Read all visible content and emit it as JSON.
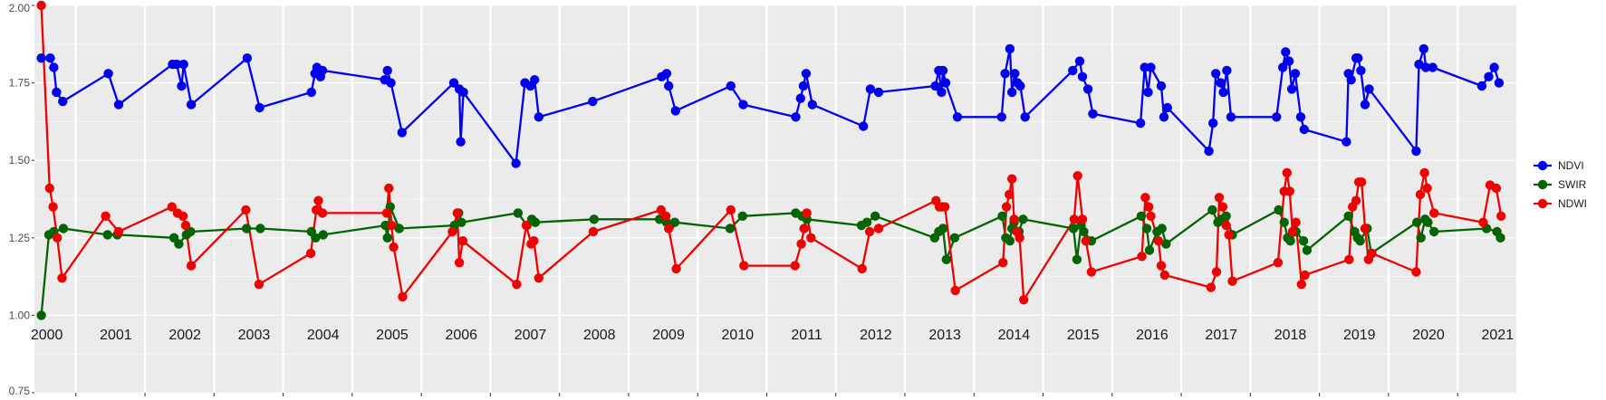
{
  "chart_data": {
    "type": "line",
    "title": "",
    "xlabel": "",
    "ylabel": "",
    "ylim": [
      0.75,
      2.0
    ],
    "xlim": [
      1999.9,
      2021.35
    ],
    "grid": true,
    "legend": "right",
    "y_ticks": [
      "0.75",
      "1.00",
      "1.25",
      "1.50",
      "1.75",
      "2.00"
    ],
    "x_ticks": [
      "2000",
      "2001",
      "2002",
      "2003",
      "2004",
      "2005",
      "2006",
      "2007",
      "2008",
      "2009",
      "2010",
      "2011",
      "2012",
      "2013",
      "2014",
      "2015",
      "2016",
      "2017",
      "2018",
      "2019",
      "2020",
      "2021"
    ],
    "series": [
      {
        "name": "NDVI",
        "color": "#0000ee",
        "points": [
          [
            2000.0,
            1.83
          ],
          [
            2000.13,
            1.83
          ],
          [
            2000.18,
            1.8
          ],
          [
            2000.22,
            1.72
          ],
          [
            2000.31,
            1.69
          ],
          [
            2000.97,
            1.78
          ],
          [
            2001.12,
            1.68
          ],
          [
            2001.9,
            1.81
          ],
          [
            2001.96,
            1.81
          ],
          [
            2002.03,
            1.74
          ],
          [
            2002.06,
            1.81
          ],
          [
            2002.17,
            1.68
          ],
          [
            2002.98,
            1.83
          ],
          [
            2003.16,
            1.67
          ],
          [
            2003.91,
            1.72
          ],
          [
            2003.96,
            1.78
          ],
          [
            2003.99,
            1.8
          ],
          [
            2004.04,
            1.77
          ],
          [
            2004.07,
            1.79
          ],
          [
            2004.97,
            1.76
          ],
          [
            2005.01,
            1.79
          ],
          [
            2005.06,
            1.75
          ],
          [
            2005.22,
            1.59
          ],
          [
            2005.97,
            1.75
          ],
          [
            2006.05,
            1.73
          ],
          [
            2006.07,
            1.56
          ],
          [
            2006.11,
            1.72
          ],
          [
            2006.87,
            1.49
          ],
          [
            2007.0,
            1.75
          ],
          [
            2007.08,
            1.74
          ],
          [
            2007.14,
            1.76
          ],
          [
            2007.2,
            1.64
          ],
          [
            2007.98,
            1.69
          ],
          [
            2008.98,
            1.77
          ],
          [
            2009.05,
            1.78
          ],
          [
            2009.08,
            1.74
          ],
          [
            2009.18,
            1.66
          ],
          [
            2009.98,
            1.74
          ],
          [
            2010.16,
            1.68
          ],
          [
            2010.92,
            1.64
          ],
          [
            2010.99,
            1.7
          ],
          [
            2011.03,
            1.74
          ],
          [
            2011.07,
            1.78
          ],
          [
            2011.16,
            1.68
          ],
          [
            2011.9,
            1.61
          ],
          [
            2012.0,
            1.73
          ],
          [
            2012.12,
            1.72
          ],
          [
            2012.94,
            1.74
          ],
          [
            2012.99,
            1.79
          ],
          [
            2013.03,
            1.72
          ],
          [
            2013.05,
            1.79
          ],
          [
            2013.09,
            1.75
          ],
          [
            2013.26,
            1.64
          ],
          [
            2013.9,
            1.64
          ],
          [
            2013.95,
            1.78
          ],
          [
            2014.02,
            1.86
          ],
          [
            2014.05,
            1.72
          ],
          [
            2014.09,
            1.78
          ],
          [
            2014.13,
            1.75
          ],
          [
            2014.17,
            1.74
          ],
          [
            2014.24,
            1.64
          ],
          [
            2014.93,
            1.79
          ],
          [
            2015.03,
            1.82
          ],
          [
            2015.07,
            1.77
          ],
          [
            2015.15,
            1.73
          ],
          [
            2015.22,
            1.65
          ],
          [
            2015.91,
            1.62
          ],
          [
            2015.97,
            1.8
          ],
          [
            2016.02,
            1.72
          ],
          [
            2016.06,
            1.8
          ],
          [
            2016.21,
            1.74
          ],
          [
            2016.25,
            1.64
          ],
          [
            2016.3,
            1.67
          ],
          [
            2016.9,
            1.53
          ],
          [
            2016.96,
            1.62
          ],
          [
            2017.0,
            1.78
          ],
          [
            2017.07,
            1.75
          ],
          [
            2017.11,
            1.72
          ],
          [
            2017.16,
            1.79
          ],
          [
            2017.22,
            1.64
          ],
          [
            2017.88,
            1.64
          ],
          [
            2017.97,
            1.8
          ],
          [
            2018.01,
            1.85
          ],
          [
            2018.06,
            1.82
          ],
          [
            2018.1,
            1.73
          ],
          [
            2018.15,
            1.78
          ],
          [
            2018.23,
            1.64
          ],
          [
            2018.28,
            1.6
          ],
          [
            2018.89,
            1.56
          ],
          [
            2018.92,
            1.78
          ],
          [
            2018.96,
            1.76
          ],
          [
            2019.03,
            1.83
          ],
          [
            2019.06,
            1.83
          ],
          [
            2019.1,
            1.79
          ],
          [
            2019.16,
            1.68
          ],
          [
            2019.22,
            1.73
          ],
          [
            2019.9,
            1.53
          ],
          [
            2019.94,
            1.81
          ],
          [
            2020.01,
            1.86
          ],
          [
            2020.04,
            1.8
          ],
          [
            2020.14,
            1.8
          ],
          [
            2020.85,
            1.74
          ],
          [
            2020.95,
            1.77
          ],
          [
            2021.03,
            1.8
          ],
          [
            2021.1,
            1.75
          ]
        ]
      },
      {
        "name": "SWIR",
        "color": "#006400",
        "points": [
          [
            2000.0,
            1.0
          ],
          [
            2000.11,
            1.26
          ],
          [
            2000.18,
            1.27
          ],
          [
            2000.32,
            1.28
          ],
          [
            2000.96,
            1.26
          ],
          [
            2001.1,
            1.26
          ],
          [
            2001.92,
            1.25
          ],
          [
            2001.99,
            1.23
          ],
          [
            2002.1,
            1.26
          ],
          [
            2002.16,
            1.27
          ],
          [
            2002.97,
            1.28
          ],
          [
            2003.17,
            1.28
          ],
          [
            2003.91,
            1.27
          ],
          [
            2003.97,
            1.25
          ],
          [
            2004.08,
            1.26
          ],
          [
            2004.98,
            1.29
          ],
          [
            2005.01,
            1.25
          ],
          [
            2005.05,
            1.35
          ],
          [
            2005.18,
            1.28
          ],
          [
            2005.98,
            1.29
          ],
          [
            2006.04,
            1.33
          ],
          [
            2006.08,
            1.3
          ],
          [
            2006.9,
            1.33
          ],
          [
            2007.03,
            1.29
          ],
          [
            2007.1,
            1.31
          ],
          [
            2007.15,
            1.3
          ],
          [
            2008.0,
            1.31
          ],
          [
            2008.95,
            1.31
          ],
          [
            2009.05,
            1.3
          ],
          [
            2009.1,
            1.29
          ],
          [
            2009.17,
            1.3
          ],
          [
            2009.97,
            1.28
          ],
          [
            2010.15,
            1.32
          ],
          [
            2010.92,
            1.33
          ],
          [
            2011.01,
            1.32
          ],
          [
            2011.08,
            1.31
          ],
          [
            2011.87,
            1.29
          ],
          [
            2011.95,
            1.3
          ],
          [
            2012.07,
            1.32
          ],
          [
            2012.93,
            1.25
          ],
          [
            2012.99,
            1.27
          ],
          [
            2013.05,
            1.28
          ],
          [
            2013.1,
            1.18
          ],
          [
            2013.22,
            1.25
          ],
          [
            2013.91,
            1.32
          ],
          [
            2013.96,
            1.25
          ],
          [
            2014.02,
            1.24
          ],
          [
            2014.05,
            1.28
          ],
          [
            2014.08,
            1.3
          ],
          [
            2014.15,
            1.27
          ],
          [
            2014.21,
            1.31
          ],
          [
            2014.94,
            1.28
          ],
          [
            2014.99,
            1.18
          ],
          [
            2015.05,
            1.29
          ],
          [
            2015.09,
            1.27
          ],
          [
            2015.2,
            1.24
          ],
          [
            2015.92,
            1.32
          ],
          [
            2016.0,
            1.28
          ],
          [
            2016.04,
            1.21
          ],
          [
            2016.15,
            1.27
          ],
          [
            2016.22,
            1.28
          ],
          [
            2016.28,
            1.23
          ],
          [
            2016.95,
            1.34
          ],
          [
            2017.03,
            1.3
          ],
          [
            2017.08,
            1.31
          ],
          [
            2017.15,
            1.32
          ],
          [
            2017.24,
            1.26
          ],
          [
            2017.91,
            1.34
          ],
          [
            2017.99,
            1.3
          ],
          [
            2018.04,
            1.25
          ],
          [
            2018.08,
            1.24
          ],
          [
            2018.16,
            1.27
          ],
          [
            2018.27,
            1.24
          ],
          [
            2018.32,
            1.21
          ],
          [
            2018.92,
            1.32
          ],
          [
            2019.01,
            1.27
          ],
          [
            2019.05,
            1.25
          ],
          [
            2019.09,
            1.24
          ],
          [
            2019.19,
            1.28
          ],
          [
            2019.25,
            1.2
          ],
          [
            2019.91,
            1.3
          ],
          [
            2019.97,
            1.25
          ],
          [
            2020.03,
            1.31
          ],
          [
            2020.07,
            1.3
          ],
          [
            2020.16,
            1.27
          ],
          [
            2020.92,
            1.28
          ],
          [
            2021.07,
            1.27
          ],
          [
            2021.12,
            1.25
          ]
        ]
      },
      {
        "name": "NDWI",
        "color": "#ee0000",
        "points": [
          [
            2000.0,
            2.0
          ],
          [
            2000.12,
            1.41
          ],
          [
            2000.17,
            1.35
          ],
          [
            2000.23,
            1.25
          ],
          [
            2000.3,
            1.12
          ],
          [
            2000.93,
            1.32
          ],
          [
            2001.12,
            1.27
          ],
          [
            2001.89,
            1.35
          ],
          [
            2001.97,
            1.33
          ],
          [
            2002.05,
            1.32
          ],
          [
            2002.09,
            1.29
          ],
          [
            2002.17,
            1.16
          ],
          [
            2002.96,
            1.34
          ],
          [
            2003.15,
            1.1
          ],
          [
            2003.9,
            1.2
          ],
          [
            2003.98,
            1.34
          ],
          [
            2004.01,
            1.37
          ],
          [
            2004.07,
            1.33
          ],
          [
            2005.0,
            1.33
          ],
          [
            2005.03,
            1.41
          ],
          [
            2005.07,
            1.29
          ],
          [
            2005.1,
            1.22
          ],
          [
            2005.23,
            1.06
          ],
          [
            2005.95,
            1.27
          ],
          [
            2006.02,
            1.33
          ],
          [
            2006.05,
            1.17
          ],
          [
            2006.1,
            1.24
          ],
          [
            2006.88,
            1.1
          ],
          [
            2007.02,
            1.29
          ],
          [
            2007.09,
            1.23
          ],
          [
            2007.13,
            1.24
          ],
          [
            2007.2,
            1.12
          ],
          [
            2007.99,
            1.27
          ],
          [
            2008.97,
            1.34
          ],
          [
            2009.04,
            1.32
          ],
          [
            2009.08,
            1.28
          ],
          [
            2009.19,
            1.15
          ],
          [
            2009.98,
            1.34
          ],
          [
            2010.17,
            1.16
          ],
          [
            2010.91,
            1.16
          ],
          [
            2011.0,
            1.23
          ],
          [
            2011.04,
            1.28
          ],
          [
            2011.08,
            1.33
          ],
          [
            2011.14,
            1.25
          ],
          [
            2011.88,
            1.15
          ],
          [
            2011.99,
            1.27
          ],
          [
            2012.12,
            1.28
          ],
          [
            2012.95,
            1.37
          ],
          [
            2013.0,
            1.35
          ],
          [
            2013.04,
            1.35
          ],
          [
            2013.08,
            1.35
          ],
          [
            2013.23,
            1.08
          ],
          [
            2013.92,
            1.17
          ],
          [
            2013.97,
            1.35
          ],
          [
            2014.01,
            1.39
          ],
          [
            2014.05,
            1.44
          ],
          [
            2014.08,
            1.31
          ],
          [
            2014.12,
            1.27
          ],
          [
            2014.16,
            1.25
          ],
          [
            2014.22,
            1.05
          ],
          [
            2014.95,
            1.31
          ],
          [
            2015.0,
            1.45
          ],
          [
            2015.07,
            1.31
          ],
          [
            2015.12,
            1.24
          ],
          [
            2015.2,
            1.14
          ],
          [
            2015.93,
            1.19
          ],
          [
            2015.98,
            1.38
          ],
          [
            2016.03,
            1.35
          ],
          [
            2016.06,
            1.32
          ],
          [
            2016.17,
            1.24
          ],
          [
            2016.21,
            1.16
          ],
          [
            2016.26,
            1.13
          ],
          [
            2016.93,
            1.09
          ],
          [
            2017.01,
            1.14
          ],
          [
            2017.05,
            1.38
          ],
          [
            2017.1,
            1.35
          ],
          [
            2017.15,
            1.29
          ],
          [
            2017.19,
            1.26
          ],
          [
            2017.24,
            1.11
          ],
          [
            2017.9,
            1.17
          ],
          [
            2017.99,
            1.4
          ],
          [
            2018.03,
            1.46
          ],
          [
            2018.07,
            1.4
          ],
          [
            2018.11,
            1.27
          ],
          [
            2018.16,
            1.3
          ],
          [
            2018.24,
            1.1
          ],
          [
            2018.29,
            1.13
          ],
          [
            2018.93,
            1.18
          ],
          [
            2018.98,
            1.35
          ],
          [
            2019.03,
            1.37
          ],
          [
            2019.07,
            1.43
          ],
          [
            2019.11,
            1.43
          ],
          [
            2019.16,
            1.28
          ],
          [
            2019.21,
            1.18
          ],
          [
            2019.26,
            1.2
          ],
          [
            2019.9,
            1.14
          ],
          [
            2019.96,
            1.39
          ],
          [
            2020.02,
            1.46
          ],
          [
            2020.06,
            1.41
          ],
          [
            2020.16,
            1.33
          ],
          [
            2020.87,
            1.3
          ],
          [
            2020.97,
            1.42
          ],
          [
            2021.06,
            1.41
          ],
          [
            2021.13,
            1.32
          ]
        ]
      }
    ]
  }
}
